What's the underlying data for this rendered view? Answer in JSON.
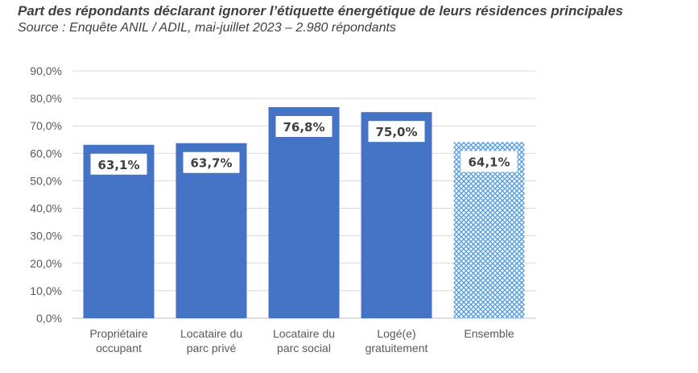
{
  "chart_data": {
    "type": "bar",
    "title": "Part des répondants déclarant ignorer l’étiquette énergétique de leurs résidences principales",
    "subtitle": "Source : Enquête ANIL  /  ADIL, mai-juillet 2023 – 2.980 répondants",
    "categories": [
      [
        "Propriétaire",
        "occupant"
      ],
      [
        "Locataire du",
        "parc privé"
      ],
      [
        "Locataire du",
        "parc social"
      ],
      [
        "Logé(e)",
        "gratuitement"
      ],
      [
        "Ensemble"
      ]
    ],
    "values": [
      63.1,
      63.7,
      76.8,
      75.0,
      64.1
    ],
    "data_labels": [
      "63,1%",
      "63,7%",
      "76,8%",
      "75,0%",
      "64,1%"
    ],
    "ylim": [
      0,
      90
    ],
    "yticks": [
      "0,0%",
      "10,0%",
      "20,0%",
      "30,0%",
      "40,0%",
      "50,0%",
      "60,0%",
      "70,0%",
      "80,0%",
      "90,0%"
    ],
    "grid": true,
    "colors": {
      "bar": "#4472C4",
      "pattern": "#2E86D4"
    },
    "xlabel": "",
    "ylabel": ""
  }
}
